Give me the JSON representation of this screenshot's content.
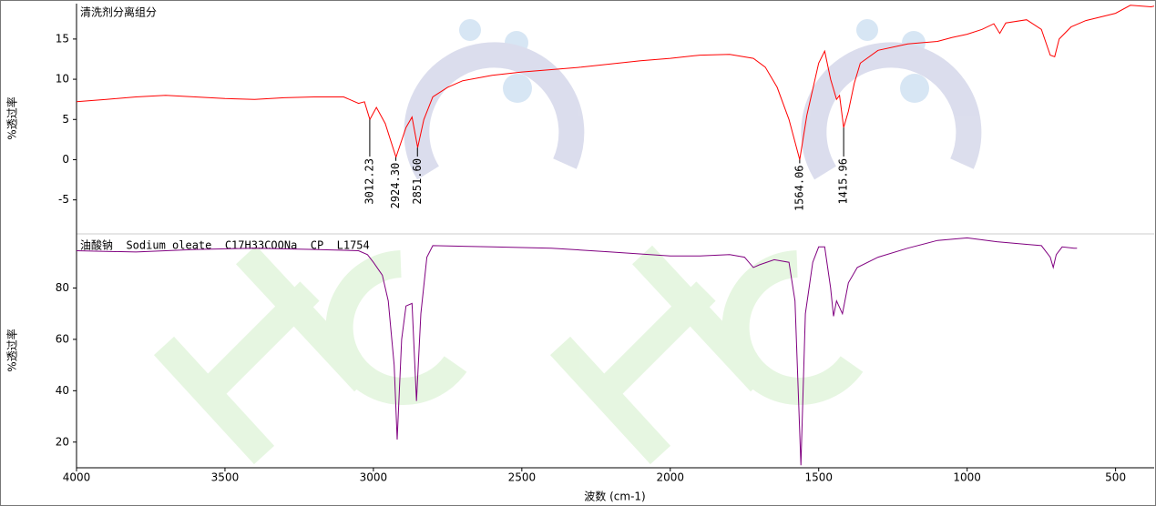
{
  "chart_data": [
    {
      "type": "line",
      "title": "清洗剂分离组分",
      "ylabel": "%透过率",
      "x": [
        4000,
        3900,
        3800,
        3700,
        3600,
        3500,
        3400,
        3300,
        3200,
        3100,
        3050,
        3030,
        3012,
        2990,
        2960,
        2924,
        2890,
        2870,
        2851,
        2830,
        2800,
        2750,
        2700,
        2600,
        2500,
        2400,
        2300,
        2200,
        2100,
        2000,
        1900,
        1800,
        1720,
        1680,
        1640,
        1600,
        1564,
        1540,
        1500,
        1480,
        1460,
        1440,
        1430,
        1416,
        1400,
        1380,
        1360,
        1300,
        1200,
        1100,
        1050,
        1000,
        950,
        910,
        890,
        870,
        800,
        750,
        720,
        705,
        690,
        650,
        600,
        500,
        450,
        380,
        370
      ],
      "series": [
        {
          "name": "清洗剂分离组分",
          "color": "#ff0000",
          "values": [
            7.2,
            7.5,
            7.8,
            8.0,
            7.8,
            7.6,
            7.5,
            7.7,
            7.8,
            7.8,
            7.0,
            7.2,
            5.0,
            6.5,
            4.5,
            0.3,
            4.0,
            5.3,
            1.5,
            5.0,
            7.8,
            9.0,
            9.8,
            10.5,
            10.9,
            11.2,
            11.5,
            11.9,
            12.3,
            12.6,
            13.0,
            13.1,
            12.6,
            11.5,
            9.0,
            5.0,
            0.0,
            5.5,
            12.0,
            13.5,
            10.0,
            7.5,
            8.0,
            4.0,
            6.0,
            9.5,
            12.0,
            13.6,
            14.4,
            14.7,
            15.2,
            15.6,
            16.2,
            16.9,
            15.7,
            17.0,
            17.4,
            16.2,
            13.0,
            12.8,
            15.0,
            16.5,
            17.3,
            18.2,
            19.2,
            19.0,
            19.1
          ]
        }
      ],
      "annotations": [
        {
          "x": 3012.23,
          "y": 5.0,
          "label": "3012.23"
        },
        {
          "x": 2924.3,
          "y": 0.3,
          "label": "2924.30"
        },
        {
          "x": 2851.6,
          "y": 1.5,
          "label": "2851.60"
        },
        {
          "x": 1564.06,
          "y": 0.0,
          "label": "1564.06"
        },
        {
          "x": 1415.96,
          "y": 4.0,
          "label": "1415.96"
        }
      ],
      "xlim": [
        4000,
        370
      ],
      "ylim": [
        -9,
        19.4
      ],
      "yticks": [
        -5,
        0,
        5,
        10,
        15
      ]
    },
    {
      "type": "line",
      "title": "油酸钠  Sodium oleate  C17H33COONa  CP  L1754",
      "ylabel": "%透过率",
      "xlabel": "波数 (cm-1)",
      "x": [
        4000,
        3800,
        3600,
        3400,
        3200,
        3050,
        3020,
        3000,
        2970,
        2950,
        2930,
        2920,
        2905,
        2890,
        2870,
        2855,
        2840,
        2820,
        2800,
        2600,
        2400,
        2200,
        2000,
        1900,
        1800,
        1750,
        1720,
        1700,
        1650,
        1600,
        1580,
        1560,
        1545,
        1520,
        1500,
        1480,
        1460,
        1450,
        1440,
        1420,
        1400,
        1370,
        1300,
        1200,
        1100,
        1000,
        900,
        800,
        750,
        720,
        710,
        700,
        680,
        640,
        630
      ],
      "series": [
        {
          "name": "油酸钠",
          "color": "#800080",
          "values": [
            94.5,
            94,
            95,
            95.5,
            95,
            94.5,
            93,
            90,
            85,
            75,
            50,
            21,
            60,
            73,
            74,
            36,
            70,
            92,
            96.5,
            96,
            95.5,
            94,
            92.5,
            92.5,
            93,
            92,
            88,
            89,
            91,
            90,
            75,
            11,
            70,
            90,
            96,
            96,
            80,
            69,
            75,
            70,
            82,
            88,
            92,
            95.5,
            98.5,
            99.5,
            98,
            97,
            96.5,
            92,
            88,
            93,
            96,
            95.5,
            95.5
          ]
        }
      ],
      "xlim": [
        4000,
        370
      ],
      "ylim": [
        10,
        100
      ],
      "yticks": [
        20,
        40,
        60,
        80
      ],
      "xticks": [
        4000,
        3500,
        3000,
        2500,
        2000,
        1500,
        1000,
        500
      ]
    }
  ]
}
